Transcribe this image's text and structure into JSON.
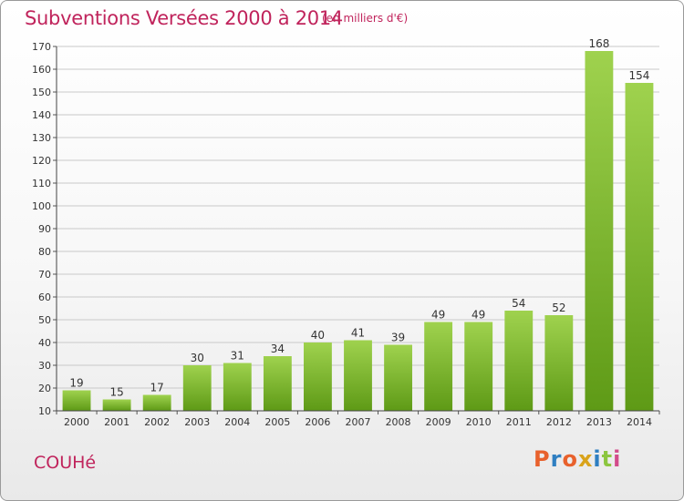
{
  "header": {
    "title": "Subventions Versées 2000 à 2014",
    "subtitle": "(en milliers d'€)"
  },
  "footer": {
    "commune": "COUHé",
    "logo": "Proxiti"
  },
  "colors": {
    "title": "#c0245c",
    "bar_top": "#9fd24e",
    "bar_bottom": "#5e9a16",
    "grid": "#c9c9c9",
    "logo_letters": [
      "#e8612c",
      "#2f7fc1",
      "#e8612c",
      "#d9a31a",
      "#2f7fc1",
      "#8cc63f",
      "#d24b8a"
    ]
  },
  "chart_data": {
    "type": "bar",
    "categories": [
      "2000",
      "2001",
      "2002",
      "2003",
      "2004",
      "2005",
      "2006",
      "2007",
      "2008",
      "2009",
      "2010",
      "2011",
      "2012",
      "2013",
      "2014"
    ],
    "values": [
      19,
      15,
      17,
      30,
      31,
      34,
      40,
      41,
      39,
      49,
      49,
      54,
      52,
      168,
      154
    ],
    "title": "Subventions Versées 2000 à 2014",
    "subtitle": "(en milliers d'€)",
    "xlabel": "",
    "ylabel": "",
    "ylim": [
      10,
      170
    ],
    "yticks": [
      10,
      20,
      30,
      40,
      50,
      60,
      70,
      80,
      90,
      100,
      110,
      120,
      130,
      140,
      150,
      160,
      170
    ],
    "grid": true,
    "data_labels": true
  }
}
